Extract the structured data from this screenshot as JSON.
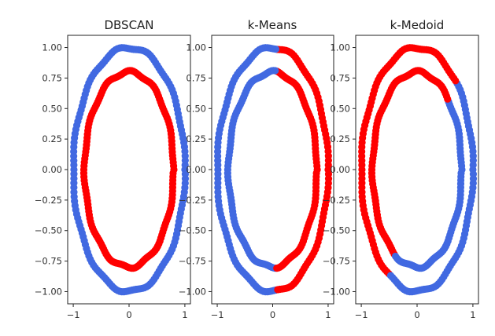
{
  "chart_data": [
    {
      "type": "scatter",
      "title": "DBSCAN",
      "xlim": [
        -1.1,
        1.1
      ],
      "ylim": [
        -1.1,
        1.1
      ],
      "x_ticks": [
        -1,
        0,
        1
      ],
      "y_ticks": [
        1.0,
        0.75,
        0.5,
        0.25,
        0.0,
        -0.25,
        -0.5,
        -0.75,
        -1.0
      ],
      "y_tick_labels": [
        "1.00",
        "0.75",
        "0.50",
        "0.25",
        "0.00",
        "−0.25",
        "−0.50",
        "−0.75",
        "−1.00"
      ],
      "x_tick_labels": [
        "−1",
        "0",
        "1"
      ],
      "clusters": [
        {
          "radius": 1.0,
          "segments": [
            {
              "from": 0,
              "to": 360,
              "color": "#4169e1"
            }
          ]
        },
        {
          "radius": 0.8,
          "segments": [
            {
              "from": 0,
              "to": 360,
              "color": "#ff0000"
            }
          ]
        }
      ]
    },
    {
      "type": "scatter",
      "title": "k-Means",
      "xlim": [
        -1.1,
        1.1
      ],
      "ylim": [
        -1.1,
        1.1
      ],
      "x_ticks": [
        -1,
        0,
        1
      ],
      "y_ticks": [
        1.0,
        0.75,
        0.5,
        0.25,
        0.0,
        -0.25,
        -0.5,
        -0.75,
        -1.0
      ],
      "y_tick_labels": [
        "1.00",
        "0.75",
        "0.50",
        "0.25",
        "0.00",
        "−0.25",
        "−0.50",
        "−0.75",
        "−1.00"
      ],
      "x_tick_labels": [
        "−1",
        "0",
        "1"
      ],
      "clusters": [
        {
          "radius": 1.0,
          "segments": [
            {
              "from": -85,
              "to": 85,
              "color": "#ff0000"
            },
            {
              "from": 85,
              "to": 275,
              "color": "#4169e1"
            }
          ]
        },
        {
          "radius": 0.8,
          "segments": [
            {
              "from": -85,
              "to": 85,
              "color": "#ff0000"
            },
            {
              "from": 85,
              "to": 275,
              "color": "#4169e1"
            }
          ]
        }
      ]
    },
    {
      "type": "scatter",
      "title": "k-Medoid",
      "xlim": [
        -1.1,
        1.1
      ],
      "ylim": [
        -1.1,
        1.1
      ],
      "x_ticks": [
        -1,
        0,
        1
      ],
      "y_ticks": [
        1.0,
        0.75,
        0.5,
        0.25,
        0.0,
        -0.25,
        -0.5,
        -0.75,
        -1.0
      ],
      "y_tick_labels": [
        "1.00",
        "0.75",
        "0.50",
        "0.25",
        "0.00",
        "−0.25",
        "−0.50",
        "−0.75",
        "−1.00"
      ],
      "x_tick_labels": [
        "−1",
        "0",
        "1"
      ],
      "clusters": [
        {
          "radius": 1.0,
          "segments": [
            {
              "from": 45,
              "to": 240,
              "color": "#ff0000"
            },
            {
              "from": 240,
              "to": 405,
              "color": "#4169e1"
            }
          ]
        },
        {
          "radius": 0.8,
          "segments": [
            {
              "from": 45,
              "to": 240,
              "color": "#ff0000"
            },
            {
              "from": 240,
              "to": 405,
              "color": "#4169e1"
            }
          ]
        }
      ]
    }
  ]
}
